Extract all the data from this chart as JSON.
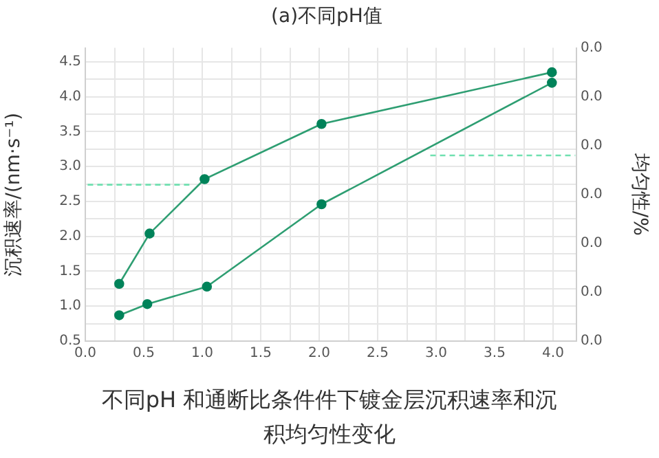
{
  "chart_data": {
    "type": "line",
    "title": "(a)不同pH值",
    "ylabel": "沉积速率/(nm·s⁻¹)",
    "y2label": "均匀性/%",
    "annotations": [
      "不同pH 和通断比条件件下镀金层沉积速率和沉积均匀性变化"
    ],
    "xlim": [
      0,
      4.2
    ],
    "ylim": [
      0.5,
      4.7
    ],
    "xticks": [
      {
        "value": 0,
        "label": "0.0"
      },
      {
        "value": 0.25,
        "label": null
      },
      0.5,
      {
        "value": 0.75,
        "label": null
      },
      {
        "value": 1,
        "label": "1.0"
      },
      {
        "value": 1.25,
        "label": null
      },
      1.5,
      {
        "value": 1.75,
        "label": null
      },
      {
        "value": 2,
        "label": "2.0"
      },
      {
        "value": 2.25,
        "label": null
      },
      2.5,
      {
        "value": 2.75,
        "label": null
      },
      {
        "value": 3,
        "label": "3.0"
      },
      {
        "value": 3.25,
        "label": null
      },
      3.5,
      {
        "value": 3.75,
        "label": null
      },
      {
        "value": 4,
        "label": "4.0"
      }
    ],
    "yticks": [
      0.5,
      {
        "value": 0.75,
        "label": null
      },
      {
        "value": 1,
        "label": "1.0"
      },
      {
        "value": 1.25,
        "label": null
      },
      1.5,
      {
        "value": 1.75,
        "label": null
      },
      {
        "value": 2,
        "label": "2.0"
      },
      {
        "value": 2.25,
        "label": null
      },
      2.5,
      {
        "value": 2.75,
        "label": null
      },
      {
        "value": 3,
        "label": "3.0"
      },
      {
        "value": 3.25,
        "label": null
      },
      3.5,
      {
        "value": 3.75,
        "label": null
      },
      {
        "value": 4,
        "label": "4.0"
      },
      {
        "value": 4.25,
        "label": null
      },
      4.5
    ],
    "y2_categories": [
      "0.0",
      "0.0",
      "0.0",
      "0.0",
      "0.0",
      "0.0",
      "0.0"
    ],
    "grid": true,
    "marker": "circle",
    "line_style": "solid",
    "series": [
      {
        "color": "#2e9e72",
        "x": [
          0.29,
          0.55,
          1.02,
          2.02,
          3.99
        ],
        "values": [
          1.32,
          2.04,
          2.82,
          3.61,
          4.35
        ]
      },
      {
        "color": "#2e9e72",
        "x": [
          0.29,
          0.53,
          1.04,
          2.02,
          3.99
        ],
        "values": [
          0.87,
          1.03,
          1.28,
          2.46,
          4.2
        ]
      },
      {
        "color": "#6fe0b0",
        "x": [
          0.02,
          0.89
        ],
        "values": [
          2.74,
          2.74
        ],
        "marker": "none",
        "line_style": "dashed"
      },
      {
        "color": "#6fe0b0",
        "x": [
          2.95,
          4.19
        ],
        "values": [
          3.16,
          3.16
        ],
        "marker": "none",
        "line_style": "dashed"
      }
    ]
  }
}
